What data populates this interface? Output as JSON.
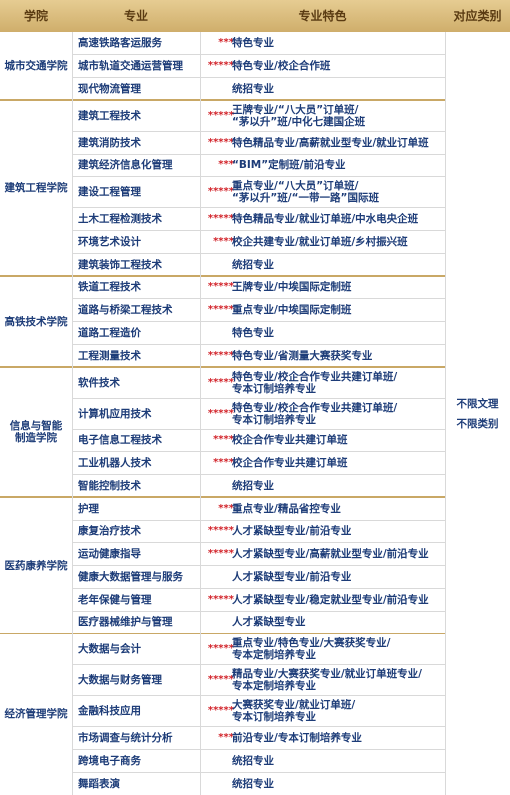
{
  "header": {
    "columns": [
      "学院",
      "专业",
      "专业特色",
      "对应类别"
    ]
  },
  "colleges": [
    {
      "name": [
        "城市交通学院"
      ],
      "majors": [
        {
          "name": "高速铁路客运服务",
          "stars": "***",
          "features": [
            "特色专业"
          ]
        },
        {
          "name": "城市轨道交通运营管理",
          "stars": "*****",
          "features": [
            "特色专业/校企合作班"
          ]
        },
        {
          "name": "现代物流管理",
          "features": [
            "统招专业"
          ]
        }
      ]
    },
    {
      "name": [
        "建筑工程学院"
      ],
      "majors": [
        {
          "name": "建筑工程技术",
          "stars": "*****",
          "features": [
            "王牌专业/“八大员”订单班/",
            "“茅以升”班/中化七建国企班"
          ]
        },
        {
          "name": "建筑消防技术",
          "stars": "*****",
          "features": [
            "特色精品专业/高薪就业型专业/就业订单班"
          ]
        },
        {
          "name": "建筑经济信息化管理",
          "stars": "***",
          "features": [
            "“BIM”定制班/前沿专业"
          ]
        },
        {
          "name": "建设工程管理",
          "stars": "*****",
          "features": [
            "重点专业/“八大员”订单班/",
            "“茅以升”班/“一带一路”国际班"
          ]
        },
        {
          "name": "土木工程检测技术",
          "stars": "*****",
          "features": [
            "特色精品专业/就业订单班/中水电央企班"
          ]
        },
        {
          "name": "环境艺术设计",
          "stars": "****",
          "features": [
            "校企共建专业/就业订单班/乡村振兴班"
          ]
        },
        {
          "name": "建筑装饰工程技术",
          "features": [
            "统招专业"
          ]
        }
      ]
    },
    {
      "name": [
        "高铁技术学院"
      ],
      "majors": [
        {
          "name": "铁道工程技术",
          "stars": "*****",
          "features": [
            "王牌专业/中埃国际定制班"
          ]
        },
        {
          "name": "道路与桥梁工程技术",
          "stars": "*****",
          "features": [
            "重点专业/中埃国际定制班"
          ]
        },
        {
          "name": "道路工程造价",
          "features": [
            "特色专业"
          ]
        },
        {
          "name": "工程测量技术",
          "stars": "*****",
          "features": [
            "特色专业/省测量大赛获奖专业"
          ]
        }
      ]
    },
    {
      "name": [
        "信息与智能",
        "制造学院"
      ],
      "majors": [
        {
          "name": "软件技术",
          "stars": "*****",
          "features": [
            "特色专业/校企合作专业共建订单班/",
            "专本订制培养专业"
          ]
        },
        {
          "name": "计算机应用技术",
          "stars": "*****",
          "features": [
            "特色专业/校企合作专业共建订单班/",
            "专本订制培养专业"
          ]
        },
        {
          "name": "电子信息工程技术",
          "stars": "****",
          "features": [
            "校企合作专业共建订单班"
          ]
        },
        {
          "name": "工业机器人技术",
          "stars": "****",
          "features": [
            "校企合作专业共建订单班"
          ]
        },
        {
          "name": "智能控制技术",
          "features": [
            "统招专业"
          ]
        }
      ]
    },
    {
      "name": [
        "医药康养学院"
      ],
      "majors": [
        {
          "name": "护理",
          "stars": "***",
          "features": [
            "重点专业/精品省控专业"
          ]
        },
        {
          "name": "康复治疗技术",
          "stars": "*****",
          "features": [
            "人才紧缺型专业/前沿专业"
          ]
        },
        {
          "name": "运动健康指导",
          "stars": "*****",
          "features": [
            "人才紧缺型专业/高薪就业型专业/前沿专业"
          ]
        },
        {
          "name": "健康大数据管理与服务",
          "features": [
            "人才紧缺型专业/前沿专业"
          ]
        },
        {
          "name": "老年保健与管理",
          "stars": "*****",
          "features": [
            "人才紧缺型专业/稳定就业型专业/前沿专业"
          ]
        },
        {
          "name": "医疗器械维护与管理",
          "features": [
            "人才紧缺型专业"
          ]
        }
      ]
    },
    {
      "name": [
        "经济管理学院"
      ],
      "majors": [
        {
          "name": "大数据与会计",
          "stars": "*****",
          "features": [
            "重点专业/特色专业/大赛获奖专业/",
            "专本定制培养专业"
          ]
        },
        {
          "name": "大数据与财务管理",
          "stars": "*****",
          "features": [
            "精品专业/大赛获奖专业/就业订单班专业/",
            "专本定制培养专业"
          ]
        },
        {
          "name": "金融科技应用",
          "stars": "*****",
          "features": [
            "大赛获奖专业/就业订单班/",
            "专本订制培养专业"
          ]
        },
        {
          "name": "市场调查与统计分析",
          "stars": "***",
          "features": [
            "前沿专业/专本订制培养专业"
          ]
        },
        {
          "name": "跨境电子商务",
          "features": [
            "统招专业"
          ]
        },
        {
          "name": "舞蹈表演",
          "features": [
            "统招专业"
          ]
        }
      ]
    }
  ],
  "category": [
    "不限文理",
    "不限类别"
  ]
}
